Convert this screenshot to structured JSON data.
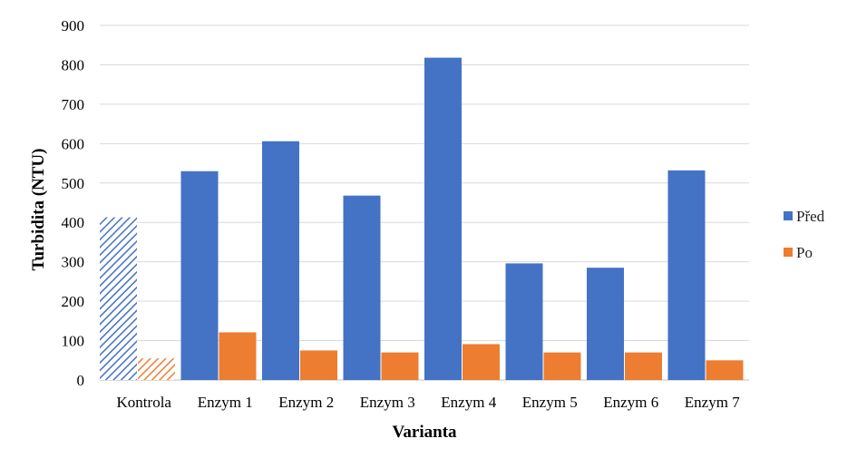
{
  "chart_data": {
    "type": "bar",
    "xlabel": "Varianta",
    "ylabel": "Turbidita (NTU)",
    "ylim": [
      0,
      900
    ],
    "yticks": [
      0,
      100,
      200,
      300,
      400,
      500,
      600,
      700,
      800,
      900
    ],
    "grid": true,
    "legend_position": "right",
    "categories": [
      "Kontrola",
      "Enzym 1",
      "Enzym 2",
      "Enzym 3",
      "Enzym 4",
      "Enzym 5",
      "Enzym 6",
      "Enzym 7"
    ],
    "series": [
      {
        "name": "Před",
        "color": "#4472C4",
        "values": [
          413,
          530,
          606,
          468,
          818,
          296,
          285,
          532
        ]
      },
      {
        "name": "Po",
        "color": "#ED7D31",
        "values": [
          55,
          121,
          75,
          70,
          91,
          70,
          70,
          50
        ]
      }
    ],
    "hatched_categories": [
      "Kontrola"
    ]
  }
}
